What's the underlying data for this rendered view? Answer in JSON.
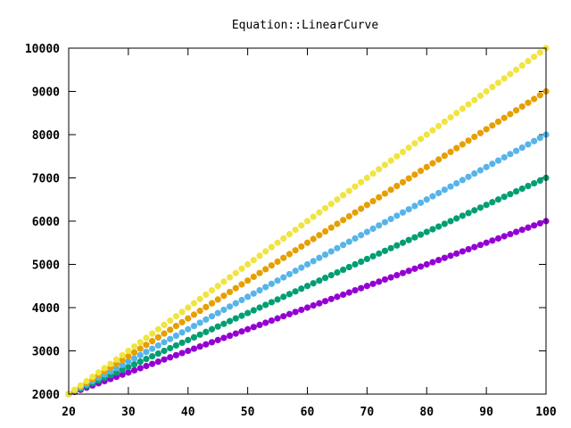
{
  "chart_data": {
    "type": "scatter",
    "title": "Equation::LinearCurve",
    "xlabel": "",
    "ylabel": "",
    "xlim": [
      20,
      100
    ],
    "ylim": [
      2000,
      10000
    ],
    "x_ticks": [
      20,
      30,
      40,
      50,
      60,
      70,
      80,
      90,
      100
    ],
    "y_ticks": [
      2000,
      3000,
      4000,
      5000,
      6000,
      7000,
      8000,
      9000,
      10000
    ],
    "x_start": 20,
    "x_end": 100,
    "x_step": 1,
    "grid": false,
    "legend": "none",
    "series": [
      {
        "color": "#9400d3",
        "start_value": 2000,
        "slope": 50
      },
      {
        "color": "#009e73",
        "start_value": 2000,
        "slope": 62.5
      },
      {
        "color": "#56b4e9",
        "start_value": 2000,
        "slope": 75
      },
      {
        "color": "#e69f00",
        "start_value": 2000,
        "slope": 87.5
      },
      {
        "color": "#f0e442",
        "start_value": 2000,
        "slope": 100
      }
    ]
  }
}
